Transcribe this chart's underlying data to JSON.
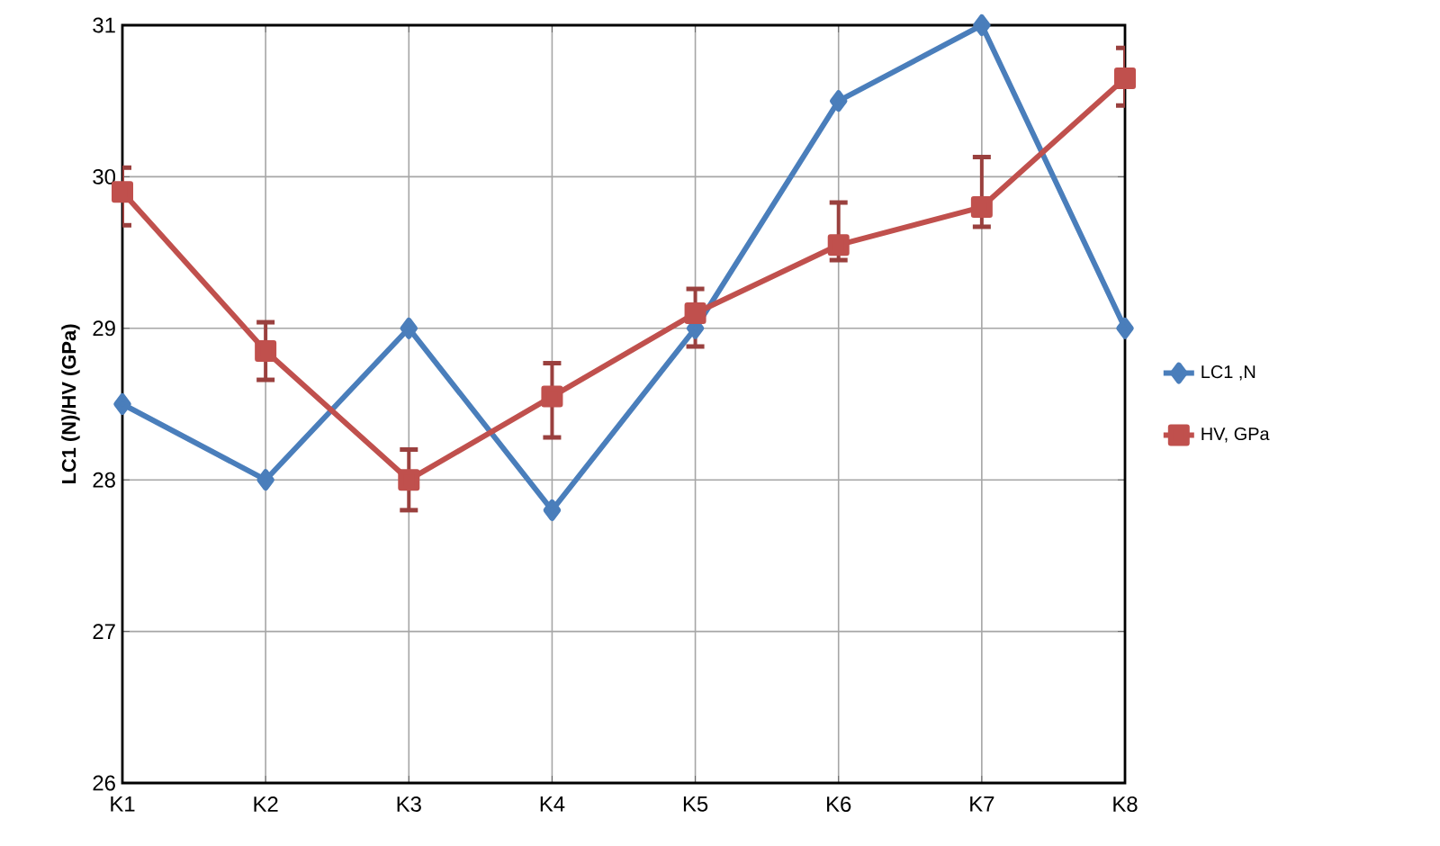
{
  "chart_data": {
    "type": "line",
    "ylabel": "LC1 (N)/HV (GPa)",
    "categories": [
      "K1",
      "K2",
      "K3",
      "K4",
      "K5",
      "K6",
      "K7",
      "K8"
    ],
    "series": [
      {
        "name": "LC1 ,N",
        "color": "#4a7ebb",
        "marker": "diamond",
        "values": [
          28.5,
          28.0,
          29.0,
          27.8,
          29.0,
          30.5,
          31.0,
          29.0
        ]
      },
      {
        "name": "HV, GPa",
        "color": "#c0504d",
        "marker": "square",
        "values": [
          29.9,
          28.85,
          28.0,
          28.55,
          29.1,
          29.55,
          29.8,
          30.65
        ],
        "errors": [
          [
            29.68,
            30.06
          ],
          [
            28.66,
            29.04
          ],
          [
            27.8,
            28.2
          ],
          [
            28.28,
            28.77
          ],
          [
            28.88,
            29.26
          ],
          [
            29.45,
            29.83
          ],
          [
            29.67,
            30.13
          ],
          [
            30.47,
            30.85
          ]
        ]
      }
    ],
    "ylim": [
      26,
      31
    ],
    "yticks": [
      26,
      27,
      28,
      29,
      30,
      31
    ],
    "grid": true,
    "legend": "right"
  }
}
